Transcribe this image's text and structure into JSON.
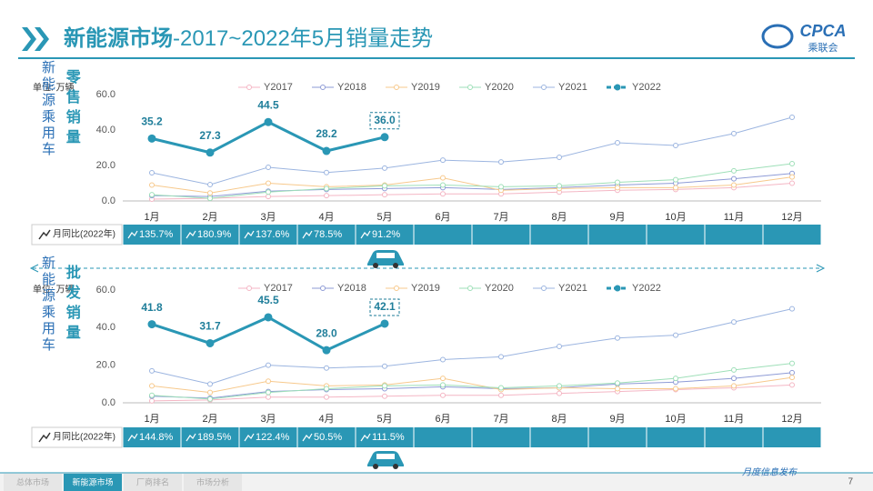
{
  "header": {
    "title_main": "新能源市场",
    "title_rest": "-2017~2022年5月销量走势",
    "logo_text": "CPCA",
    "logo_sub": "乘联会"
  },
  "chart_data": [
    {
      "type": "line",
      "title": "零售销量",
      "side_label": "新能源乘用车",
      "unit": "单位: 万辆",
      "categories": [
        "1月",
        "2月",
        "3月",
        "4月",
        "5月",
        "6月",
        "7月",
        "8月",
        "9月",
        "10月",
        "11月",
        "12月"
      ],
      "ylim": [
        0,
        60
      ],
      "yticks": [
        {
          "value": 0,
          "label": "0.0"
        },
        {
          "value": 20,
          "label": "20.0"
        },
        {
          "value": 40,
          "label": "40.0"
        },
        {
          "value": 60,
          "label": "60.0"
        }
      ],
      "grid": false,
      "series": [
        {
          "name": "Y2017",
          "color": "#f4b6c4",
          "values": [
            1,
            1.5,
            2.5,
            3,
            3.5,
            4,
            4,
            5,
            6,
            6.5,
            7.5,
            10
          ]
        },
        {
          "name": "Y2018",
          "color": "#8e9bd6",
          "values": [
            3,
            2.5,
            5.5,
            6.5,
            7,
            7.5,
            6.5,
            7.5,
            9,
            10,
            12.5,
            15.5
          ]
        },
        {
          "name": "Y2019",
          "color": "#f7c98c",
          "values": [
            9,
            4.5,
            10,
            8,
            9,
            13,
            6,
            7,
            7.5,
            7.5,
            9,
            13.5
          ]
        },
        {
          "name": "Y2020",
          "color": "#9edfb8",
          "values": [
            3.5,
            1.5,
            5,
            7,
            8.5,
            9,
            8,
            8.5,
            10.5,
            12,
            17,
            21
          ]
        },
        {
          "name": "Y2021",
          "color": "#9cb5e0",
          "values": [
            15.9,
            9.2,
            19,
            16,
            18.5,
            23,
            22,
            24.6,
            32.8,
            31.3,
            38,
            47.2
          ]
        },
        {
          "name": "Y2022",
          "color": "#2a97b5",
          "values": [
            35.2,
            27.3,
            44.5,
            28.2,
            36.0,
            null,
            null,
            null,
            null,
            null,
            null,
            null
          ],
          "value_labels": [
            "35.2",
            "27.3",
            "44.5",
            "28.2",
            "36.0",
            null,
            null,
            null,
            null,
            null,
            null,
            null
          ]
        }
      ],
      "yoy": {
        "label": "月同比(2022年)",
        "values": [
          135.7,
          180.9,
          137.6,
          78.5,
          91.2
        ],
        "value_labels": [
          "135.7%",
          "180.9%",
          "137.6%",
          "78.5%",
          "91.2%"
        ]
      }
    },
    {
      "type": "line",
      "title": "批发销量",
      "side_label": "新能源乘用车",
      "unit": "单位: 万辆",
      "categories": [
        "1月",
        "2月",
        "3月",
        "4月",
        "5月",
        "6月",
        "7月",
        "8月",
        "9月",
        "10月",
        "11月",
        "12月"
      ],
      "ylim": [
        0,
        60
      ],
      "yticks": [
        {
          "value": 0,
          "label": "0.0"
        },
        {
          "value": 20,
          "label": "20.0"
        },
        {
          "value": 40,
          "label": "40.0"
        },
        {
          "value": 60,
          "label": "60.0"
        }
      ],
      "grid": false,
      "series": [
        {
          "name": "Y2017",
          "color": "#f4b6c4",
          "values": [
            1,
            1.5,
            3,
            3,
            3.5,
            4,
            4,
            5,
            6,
            7,
            8,
            9.5
          ]
        },
        {
          "name": "Y2018",
          "color": "#8e9bd6",
          "values": [
            3.5,
            2.5,
            6,
            7,
            7.5,
            8.5,
            7.5,
            8,
            10,
            11,
            13,
            16
          ]
        },
        {
          "name": "Y2019",
          "color": "#f7c98c",
          "values": [
            9,
            5.5,
            11.5,
            9,
            9.5,
            13,
            7,
            8,
            7.5,
            7.5,
            9,
            13.5
          ]
        },
        {
          "name": "Y2020",
          "color": "#9edfb8",
          "values": [
            4,
            2,
            5.5,
            7.5,
            9,
            9.5,
            8,
            9,
            10.5,
            13,
            17.5,
            21
          ]
        },
        {
          "name": "Y2021",
          "color": "#9cb5e0",
          "values": [
            17,
            10,
            20,
            18.5,
            19.5,
            23,
            24.5,
            30,
            34.5,
            36,
            43,
            50
          ]
        },
        {
          "name": "Y2022",
          "color": "#2a97b5",
          "values": [
            41.8,
            31.7,
            45.5,
            28.0,
            42.1,
            null,
            null,
            null,
            null,
            null,
            null,
            null
          ],
          "value_labels": [
            "41.8",
            "31.7",
            "45.5",
            "28.0",
            "42.1",
            null,
            null,
            null,
            null,
            null,
            null,
            null
          ]
        }
      ],
      "yoy": {
        "label": "月同比(2022年)",
        "values": [
          144.8,
          189.5,
          122.4,
          50.5,
          111.5
        ],
        "value_labels": [
          "144.8%",
          "189.5%",
          "122.4%",
          "50.5%",
          "111.5%"
        ]
      }
    }
  ],
  "footer": {
    "tabs": [
      "总体市场",
      "新能源市场",
      "厂商排名",
      "市场分析"
    ],
    "release": "月度信息发布",
    "page": "7"
  }
}
